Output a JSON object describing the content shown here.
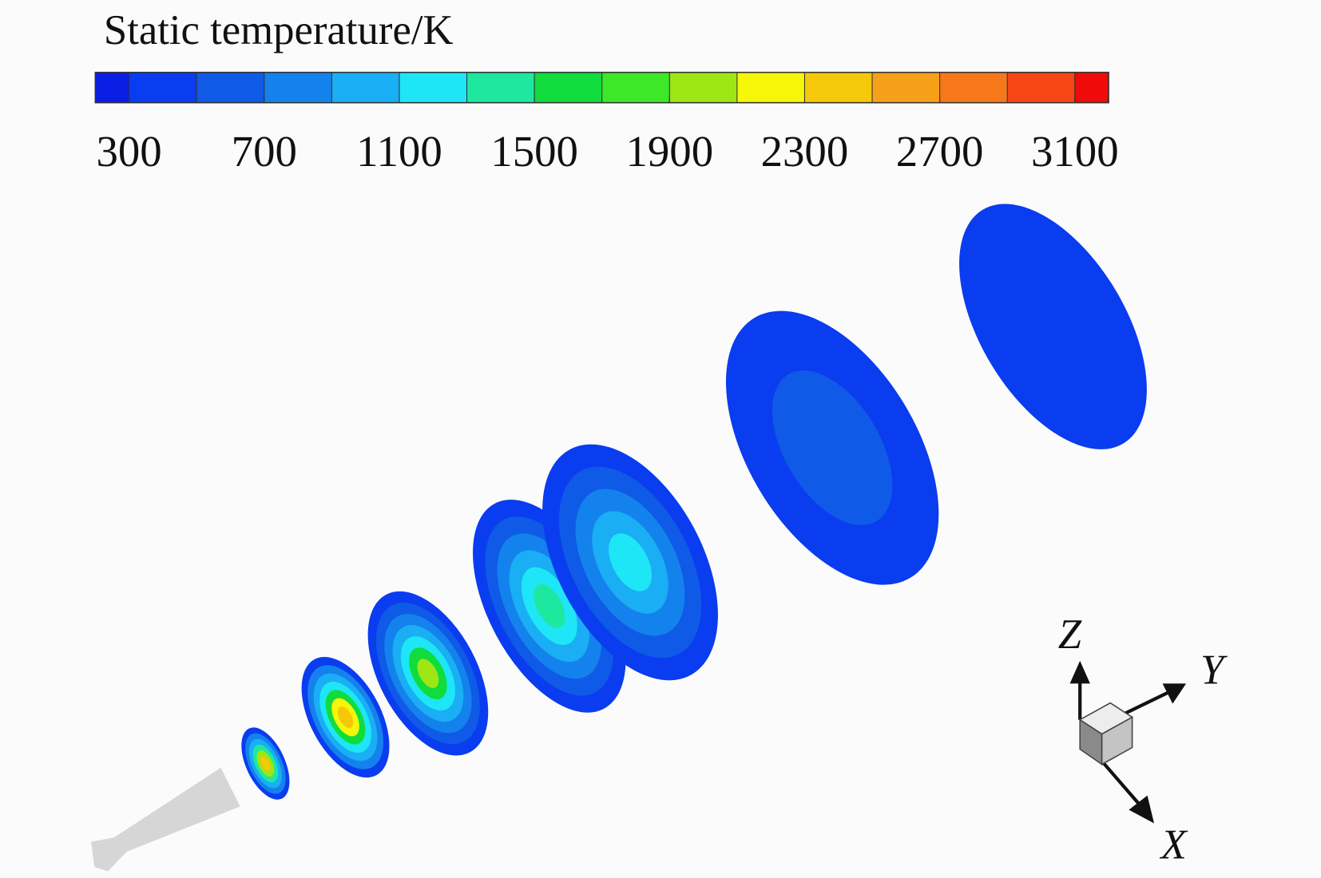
{
  "colorbar": {
    "title": "Static temperature/K",
    "range": [
      200,
      3200
    ],
    "ticks": [
      300,
      700,
      1100,
      1500,
      1900,
      2300,
      2700,
      3100
    ],
    "colors": [
      "#0a1ee6",
      "#0a3cf0",
      "#0f5ae6",
      "#1482ec",
      "#1aaef4",
      "#1ee6f6",
      "#1ee8a0",
      "#10dc3c",
      "#3ce828",
      "#9ee614",
      "#f6f60a",
      "#f6c80a",
      "#f6a01a",
      "#f6781a",
      "#f64614",
      "#f00a0a"
    ]
  },
  "axes": {
    "z": "Z",
    "y": "Y",
    "x": "X"
  }
}
